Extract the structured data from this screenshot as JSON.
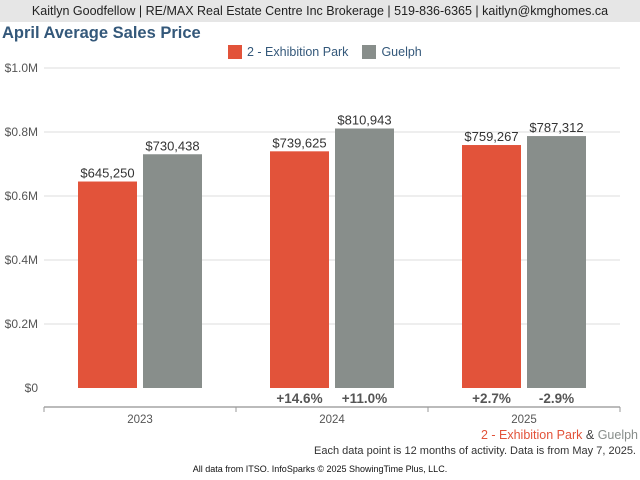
{
  "header": {
    "agent_line": "Kaitlyn Goodfellow | RE/MAX Real Estate Centre Inc Brokerage | 519-836-6365 | kaitlyn@kmghomes.ca"
  },
  "colors": {
    "series_a": "#e2533a",
    "series_b": "#888e8b",
    "title": "#34587a",
    "axis_text": "#555555",
    "grid": "#dddddd",
    "change_text": "#555555"
  },
  "chart_data": {
    "type": "bar",
    "title": "April Average Sales Price",
    "xlabel": "",
    "ylabel": "",
    "ylim": [
      0,
      1000000
    ],
    "y_ticks": [
      0,
      200000,
      400000,
      600000,
      800000,
      1000000
    ],
    "y_tick_labels": [
      "$0",
      "$0.2M",
      "$0.4M",
      "$0.6M",
      "$0.8M",
      "$1.0M"
    ],
    "categories": [
      "2023",
      "2024",
      "2025"
    ],
    "legend_position": "top-center",
    "grid": true,
    "series": [
      {
        "name": "2 - Exhibition Park",
        "values": [
          645250,
          739625,
          759267
        ],
        "labels": [
          "$645,250",
          "$739,625",
          "$759,267"
        ],
        "changes": [
          "",
          "+14.6%",
          "+2.7%"
        ]
      },
      {
        "name": "Guelph",
        "values": [
          730438,
          810943,
          787312
        ],
        "labels": [
          "$730,438",
          "$810,943",
          "$787,312"
        ],
        "changes": [
          "",
          "+11.0%",
          "-2.9%"
        ]
      }
    ]
  },
  "footer": {
    "legend_a": "2 - Exhibition Park",
    "legend_sep": " & ",
    "legend_b": "Guelph",
    "note": "Each data point is 12 months of activity. Data is from May 7, 2025.",
    "credit": "All data from ITSO. InfoSparks © 2025 ShowingTime Plus, LLC."
  }
}
